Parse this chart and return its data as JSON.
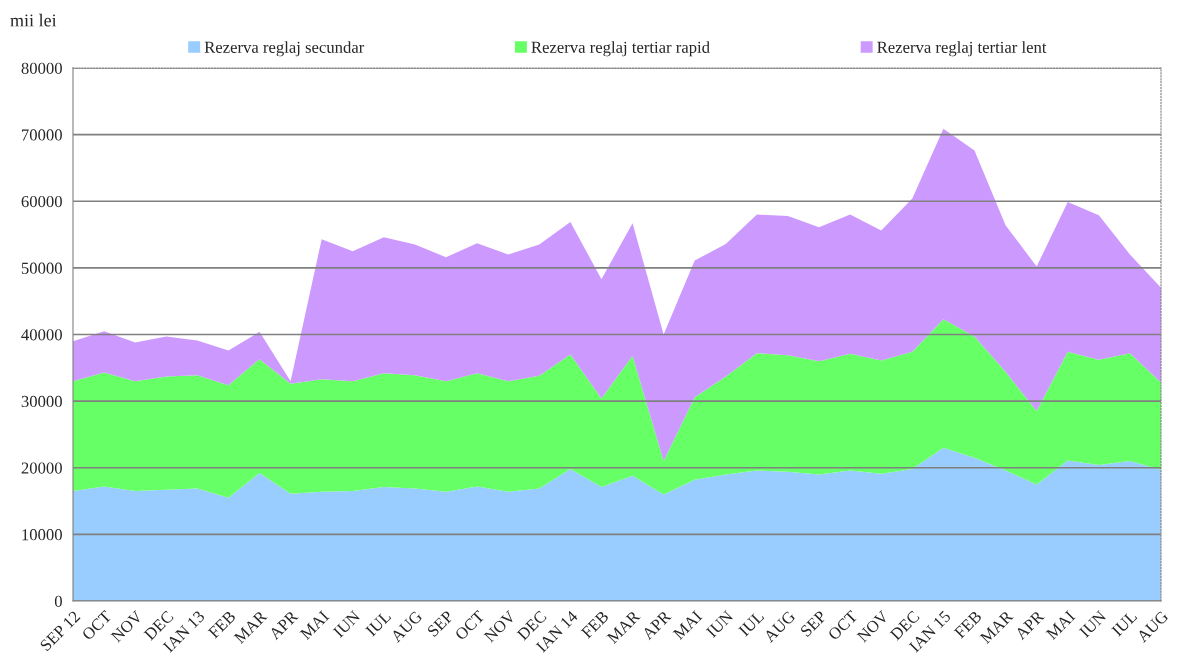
{
  "chart_data": {
    "type": "area",
    "stacked": true,
    "ylabel": "mii lei",
    "categories": [
      "SEP 12",
      "OCT",
      "NOV",
      "DEC",
      "IAN 13",
      "FEB",
      "MAR",
      "APR",
      "MAI",
      "IUN",
      "IUL",
      "AUG",
      "SEP",
      "OCT",
      "NOV",
      "DEC",
      "IAN 14",
      "FEB",
      "MAR",
      "APR",
      "MAI",
      "IUN",
      "IUL",
      "AUG",
      "SEP",
      "OCT",
      "NOV",
      "DEC",
      "IAN 15",
      "FEB",
      "MAR",
      "APR",
      "MAI",
      "IUN",
      "IUL",
      "AUG"
    ],
    "series": [
      {
        "name": "Rezerva reglaj secundar",
        "color": "#99ccff",
        "values": [
          16500,
          17200,
          16500,
          16700,
          16900,
          15500,
          19200,
          16100,
          16400,
          16500,
          17100,
          16900,
          16400,
          17200,
          16400,
          16900,
          19800,
          17100,
          18800,
          16000,
          18200,
          19000,
          19600,
          19400,
          19000,
          19600,
          19100,
          19800,
          23000,
          21500,
          19600,
          17500,
          21100,
          20400,
          21000,
          19700
        ]
      },
      {
        "name": "Rezerva reglaj tertiar rapid",
        "color": "#66ff66",
        "values": [
          16500,
          17100,
          16500,
          17000,
          17000,
          16900,
          17100,
          16500,
          16900,
          16500,
          17100,
          17000,
          16600,
          17000,
          16600,
          16900,
          17200,
          13300,
          18000,
          5000,
          12400,
          14700,
          17600,
          17500,
          17000,
          17500,
          17000,
          17600,
          19300,
          18200,
          14800,
          11000,
          16300,
          15800,
          16200,
          13100
        ]
      },
      {
        "name": "Rezerva reglaj tertiar lent",
        "color": "#cc99ff",
        "values": [
          6000,
          6200,
          5800,
          6000,
          5200,
          5200,
          4100,
          400,
          21000,
          19500,
          20400,
          19600,
          18600,
          19500,
          19000,
          19700,
          19900,
          17900,
          19900,
          19000,
          20500,
          19900,
          20800,
          20900,
          20100,
          20900,
          19500,
          23000,
          28600,
          27900,
          22000,
          21700,
          22500,
          21700,
          14800,
          14200
        ]
      }
    ],
    "ylim": [
      0,
      80000
    ],
    "yticks": [
      0,
      10000,
      20000,
      30000,
      40000,
      50000,
      60000,
      70000,
      80000
    ],
    "grid": "y",
    "legend": "top"
  }
}
